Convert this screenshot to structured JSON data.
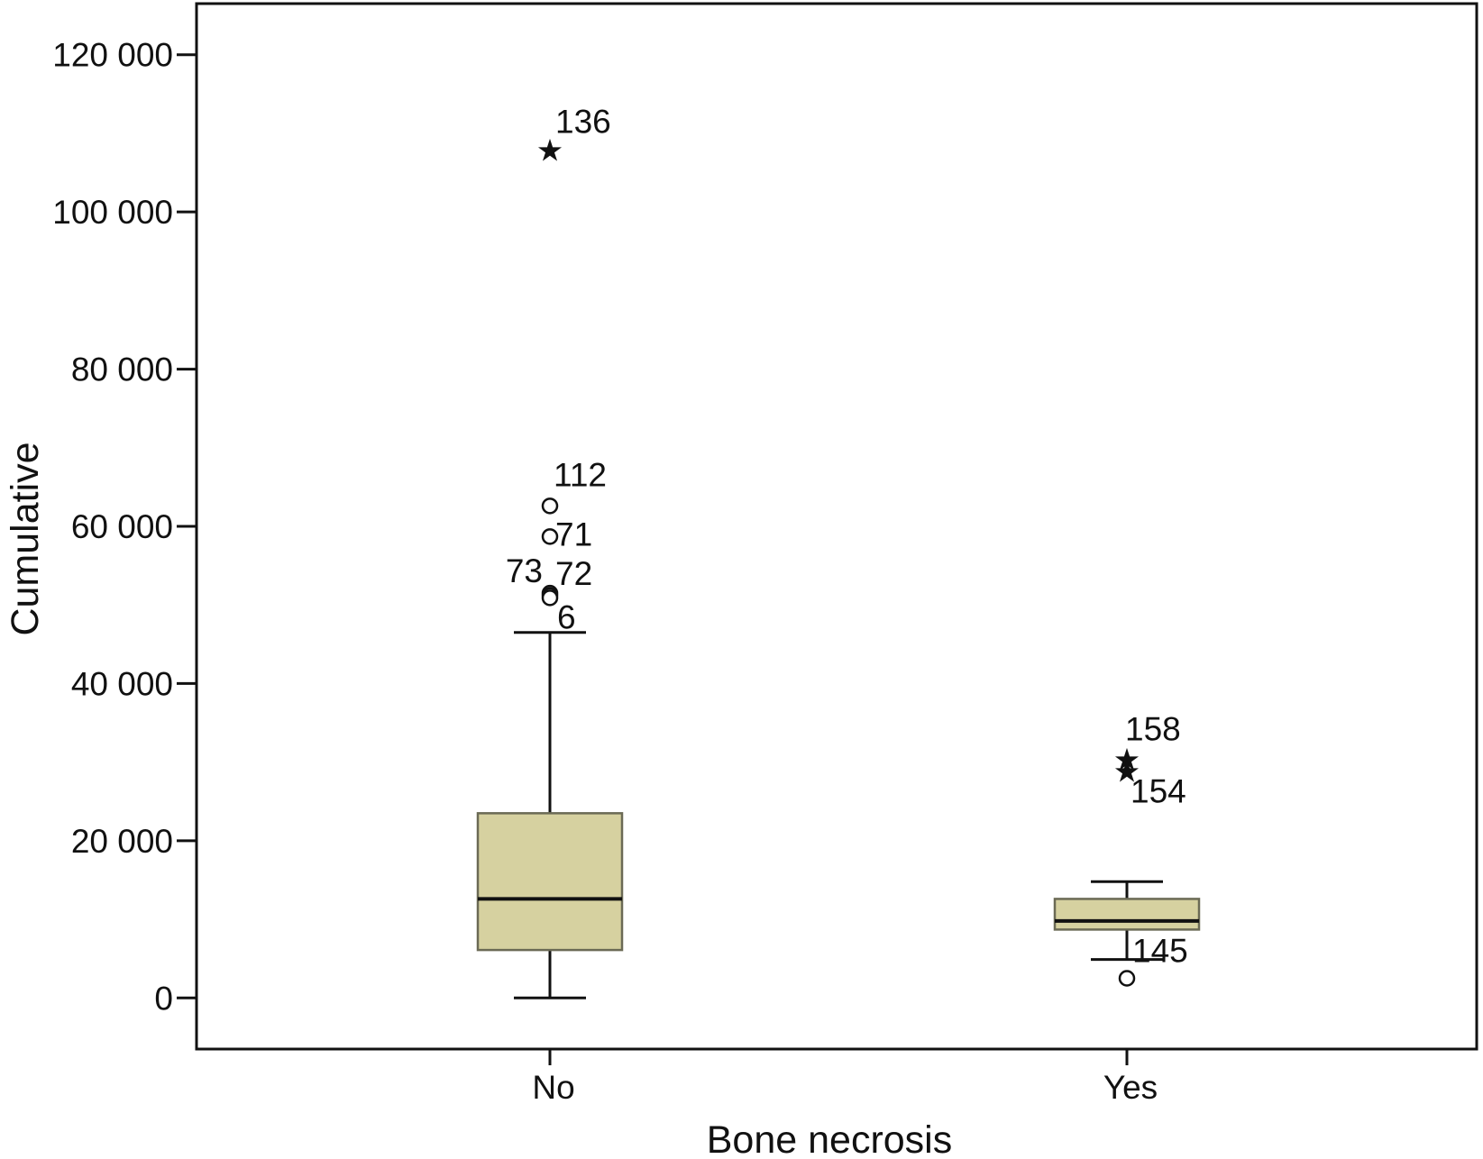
{
  "chart_data": {
    "type": "box",
    "title": "",
    "xlabel": "Bone necrosis",
    "ylabel": "Cumulative",
    "ylim": [
      -6500,
      126500
    ],
    "yticks": [
      0,
      20000,
      40000,
      60000,
      80000,
      100000,
      120000
    ],
    "ytick_labels": [
      "0",
      "20 000",
      "40 000",
      "60 000",
      "80 000",
      "100 000",
      "120 000"
    ],
    "grid": false,
    "legend": "none",
    "categories": [
      "No",
      "Yes"
    ],
    "box_color": "#d6d1a0",
    "line_color": "#111111",
    "boxes": [
      {
        "category": "No",
        "whisker_low": 0,
        "q1": 6100,
        "median": 12600,
        "q3": 23500,
        "whisker_high": 46500,
        "outliers": [
          {
            "value": 108000,
            "marker": "star",
            "label": "136"
          },
          {
            "value": 62600,
            "marker": "circle",
            "label": "112"
          },
          {
            "value": 58700,
            "marker": "circle",
            "label": "71"
          },
          {
            "value": 51500,
            "marker": "circle",
            "label": "73"
          },
          {
            "value": 51200,
            "marker": "circle",
            "label": "72"
          },
          {
            "value": 50900,
            "marker": "circle",
            "label": "6"
          }
        ]
      },
      {
        "category": "Yes",
        "whisker_low": 4900,
        "q1": 8700,
        "median": 9800,
        "q3": 12600,
        "whisker_high": 14800,
        "outliers": [
          {
            "value": 30500,
            "marker": "star",
            "label": "158"
          },
          {
            "value": 29000,
            "marker": "star",
            "label": "154"
          },
          {
            "value": 2500,
            "marker": "circle",
            "label": "145"
          }
        ]
      }
    ]
  }
}
